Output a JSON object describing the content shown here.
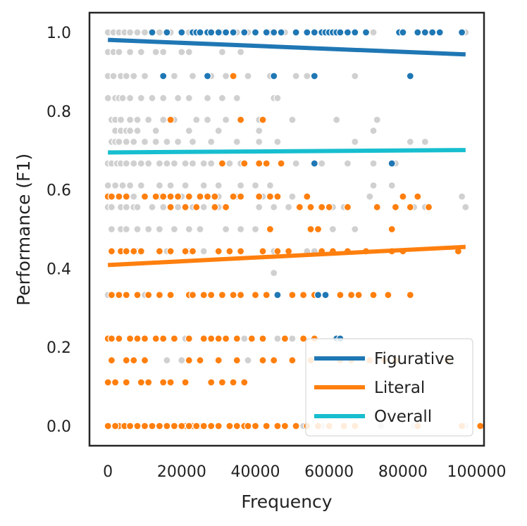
{
  "chart_data": {
    "type": "scatter",
    "title": "",
    "xlabel": "Frequency",
    "ylabel": "Performance (F1)",
    "xlim": [
      -5000,
      102000
    ],
    "ylim": [
      -0.05,
      1.05
    ],
    "xticks": [
      0,
      20000,
      40000,
      60000,
      80000,
      100000
    ],
    "yticks": [
      0.0,
      0.2,
      0.4,
      0.6,
      0.8,
      1.0
    ],
    "xtick_labels": [
      "0",
      "20000",
      "40000",
      "60000",
      "80000",
      "100000"
    ],
    "ytick_labels": [
      "0.0",
      "0.2",
      "0.4",
      "0.6",
      "0.8",
      "1.0"
    ],
    "grid": false,
    "legend_position": "lower-right",
    "colors": {
      "figurative": "#1f77b4",
      "literal": "#ff7f0e",
      "overall": "#17becf",
      "overall_points": "#d0d0d0",
      "axes": "#262626"
    },
    "series": [
      {
        "name": "Overall",
        "kind": "points",
        "color": "#d0d0d0",
        "x": [
          0,
          1500,
          3000,
          4500,
          6000,
          8000,
          10000,
          12000,
          14000,
          17000,
          20000,
          22000,
          25000,
          28000,
          31000,
          35000,
          38000,
          40000,
          44000,
          48000,
          56000,
          63000,
          72000,
          97000,
          0,
          1500,
          3000,
          6000,
          9000,
          13000,
          15000,
          20000,
          22000,
          31000,
          36000,
          0,
          1500,
          3500,
          5000,
          7000,
          10000,
          15000,
          18000,
          23000,
          28000,
          32000,
          34000,
          38000,
          44000,
          51000,
          54000,
          67000,
          0,
          2000,
          3000,
          4000,
          6000,
          9000,
          12000,
          15000,
          19000,
          22000,
          27000,
          31000,
          35000,
          45000,
          46000,
          1000,
          2000,
          3500,
          6000,
          8000,
          11000,
          15000,
          18000,
          24000,
          27000,
          32000,
          36000,
          41000,
          50000,
          62000,
          73000,
          2000,
          3500,
          5000,
          6000,
          8000,
          13000,
          22000,
          30000,
          41000,
          72000,
          1000,
          2000,
          3000,
          5000,
          7000,
          10000,
          13000,
          16000,
          19000,
          23000,
          28000,
          35000,
          41000,
          46000,
          67000,
          82000,
          86000,
          0,
          1000,
          2500,
          3500,
          5000,
          7000,
          9000,
          11000,
          14000,
          16000,
          18000,
          21000,
          23000,
          26000,
          28000,
          33000,
          36000,
          41000,
          51000,
          58000,
          65000,
          72000,
          78000,
          0,
          2000,
          4000,
          6000,
          9000,
          14000,
          17000,
          21000,
          26000,
          30000,
          36000,
          40000,
          44000,
          72000,
          77000,
          0,
          3000,
          5000,
          7000,
          10000,
          14000,
          20000,
          22000,
          25000,
          30000,
          35000,
          42000,
          50000,
          71000,
          96000,
          0,
          1000,
          3500,
          5000,
          7000,
          8000,
          12000,
          15000,
          19000,
          23000,
          26000,
          30000,
          32000,
          41000,
          45000,
          49000,
          58000,
          61000,
          64000,
          83000,
          86000,
          97000,
          1000,
          3500,
          5000,
          8000,
          11000,
          14000,
          18000,
          22000,
          25000,
          32000,
          36000,
          40000,
          55000,
          61000,
          67000,
          45000,
          1000,
          8000,
          16000,
          22000,
          26000,
          30000,
          36000,
          45000,
          54000,
          56000,
          0,
          2500,
          10000,
          0,
          1000,
          21000,
          37000,
          46000,
          50000,
          16000,
          20000,
          38000,
          0,
          6000,
          25000,
          35000,
          53000,
          58000,
          74000,
          83000,
          97000
        ],
        "y": [
          1.0,
          1.0,
          1.0,
          1.0,
          1.0,
          1.0,
          1.0,
          1.0,
          1.0,
          1.0,
          1.0,
          1.0,
          1.0,
          1.0,
          1.0,
          1.0,
          1.0,
          1.0,
          1.0,
          1.0,
          1.0,
          1.0,
          1.0,
          1.0,
          0.95,
          0.95,
          0.95,
          0.95,
          0.95,
          0.95,
          0.95,
          0.95,
          0.95,
          0.95,
          0.95,
          0.889,
          0.889,
          0.889,
          0.889,
          0.889,
          0.889,
          0.889,
          0.889,
          0.889,
          0.889,
          0.889,
          0.889,
          0.889,
          0.889,
          0.889,
          0.889,
          0.889,
          0.833,
          0.833,
          0.833,
          0.833,
          0.833,
          0.833,
          0.833,
          0.833,
          0.833,
          0.833,
          0.833,
          0.833,
          0.833,
          0.833,
          0.833,
          0.778,
          0.778,
          0.778,
          0.778,
          0.778,
          0.778,
          0.778,
          0.778,
          0.778,
          0.778,
          0.778,
          0.778,
          0.778,
          0.778,
          0.778,
          0.778,
          0.75,
          0.75,
          0.75,
          0.75,
          0.75,
          0.75,
          0.75,
          0.75,
          0.75,
          0.75,
          0.722,
          0.722,
          0.722,
          0.722,
          0.722,
          0.722,
          0.722,
          0.722,
          0.722,
          0.722,
          0.722,
          0.722,
          0.722,
          0.722,
          0.722,
          0.722,
          0.722,
          0.667,
          0.667,
          0.667,
          0.667,
          0.667,
          0.667,
          0.667,
          0.667,
          0.667,
          0.667,
          0.667,
          0.667,
          0.667,
          0.667,
          0.667,
          0.667,
          0.667,
          0.667,
          0.667,
          0.667,
          0.667,
          0.667,
          0.667,
          0.611,
          0.611,
          0.611,
          0.611,
          0.611,
          0.611,
          0.611,
          0.611,
          0.611,
          0.611,
          0.611,
          0.611,
          0.611,
          0.611,
          0.611,
          0.583,
          0.583,
          0.583,
          0.583,
          0.583,
          0.583,
          0.583,
          0.583,
          0.583,
          0.583,
          0.583,
          0.583,
          0.583,
          0.583,
          0.583,
          0.556,
          0.556,
          0.556,
          0.556,
          0.556,
          0.556,
          0.556,
          0.556,
          0.556,
          0.556,
          0.556,
          0.556,
          0.556,
          0.556,
          0.556,
          0.556,
          0.556,
          0.556,
          0.556,
          0.556,
          0.556,
          0.556,
          0.5,
          0.5,
          0.5,
          0.5,
          0.5,
          0.5,
          0.5,
          0.5,
          0.5,
          0.5,
          0.5,
          0.5,
          0.5,
          0.5,
          0.5,
          0.389,
          0.444,
          0.444,
          0.444,
          0.444,
          0.444,
          0.444,
          0.444,
          0.444,
          0.444,
          0.444,
          0.333,
          0.333,
          0.333,
          0.222,
          0.222,
          0.222,
          0.222,
          0.222,
          0.222,
          0.167,
          0.167,
          0.167,
          0.0,
          0.0,
          0.0,
          0.0,
          0.0,
          0.0,
          0.0,
          0.0,
          0.0
        ]
      },
      {
        "name": "Literal",
        "kind": "points",
        "color": "#ff7f0e",
        "x": [
          45000,
          34000,
          45000,
          17000,
          36000,
          42000,
          31000,
          37000,
          41000,
          43000,
          47000,
          37000,
          0,
          1000,
          3000,
          5000,
          10000,
          13000,
          15000,
          17000,
          19000,
          22000,
          25000,
          27000,
          29000,
          34000,
          36000,
          41000,
          44000,
          46000,
          54000,
          80000,
          84000,
          17000,
          21000,
          24000,
          29000,
          32000,
          52000,
          55000,
          58000,
          60000,
          65000,
          73000,
          78000,
          82000,
          87000,
          44000,
          77000,
          55000,
          57000,
          1000,
          3500,
          5000,
          7000,
          9000,
          14000,
          17000,
          21000,
          23000,
          30000,
          33000,
          36000,
          42000,
          46000,
          49000,
          58000,
          61000,
          65000,
          70000,
          77000,
          80000,
          95000,
          1000,
          3000,
          5000,
          8000,
          11000,
          14000,
          17000,
          22000,
          23000,
          26000,
          28000,
          31000,
          34000,
          36000,
          40000,
          43000,
          46000,
          50000,
          53000,
          56000,
          59000,
          63000,
          66000,
          68000,
          72000,
          76000,
          82000,
          0,
          1000,
          3000,
          6000,
          8000,
          10000,
          13000,
          15000,
          18000,
          22000,
          26000,
          28000,
          30000,
          32000,
          35000,
          39000,
          42000,
          48000,
          53000,
          56000,
          1000,
          5000,
          7000,
          10000,
          22000,
          25000,
          30000,
          35000,
          42000,
          45000,
          50000,
          55000,
          63000,
          66000,
          71000,
          75000,
          78000,
          92000,
          0,
          2000,
          5000,
          9000,
          11000,
          15000,
          17000,
          21000,
          28000,
          31000,
          34000,
          37000,
          3000,
          5000,
          8000,
          21000,
          23000,
          37000,
          0,
          2000,
          4500,
          6000,
          8000,
          10000,
          12000,
          14000,
          16000,
          18000,
          20000,
          22000,
          24000,
          26000,
          28000,
          30000,
          33000,
          35000,
          38000,
          40000,
          43000,
          46000,
          48000,
          51000,
          54000,
          57000,
          60000,
          64000,
          67000,
          84000,
          96000,
          101000
        ],
        "y": [
          1.0,
          0.889,
          0.889,
          0.778,
          0.778,
          0.778,
          0.667,
          0.667,
          0.667,
          0.667,
          0.667,
          0.667,
          0.583,
          0.583,
          0.583,
          0.583,
          0.583,
          0.583,
          0.583,
          0.583,
          0.583,
          0.583,
          0.583,
          0.583,
          0.583,
          0.583,
          0.583,
          0.583,
          0.583,
          0.583,
          0.583,
          0.583,
          0.583,
          0.556,
          0.556,
          0.556,
          0.556,
          0.556,
          0.556,
          0.556,
          0.556,
          0.556,
          0.556,
          0.556,
          0.556,
          0.556,
          0.556,
          0.5,
          0.5,
          0.5,
          0.5,
          0.444,
          0.444,
          0.444,
          0.444,
          0.444,
          0.444,
          0.444,
          0.444,
          0.444,
          0.444,
          0.444,
          0.444,
          0.444,
          0.444,
          0.444,
          0.444,
          0.444,
          0.444,
          0.444,
          0.444,
          0.444,
          0.444,
          0.333,
          0.333,
          0.333,
          0.333,
          0.333,
          0.333,
          0.333,
          0.333,
          0.333,
          0.333,
          0.333,
          0.333,
          0.333,
          0.333,
          0.333,
          0.333,
          0.333,
          0.333,
          0.333,
          0.333,
          0.333,
          0.333,
          0.333,
          0.333,
          0.333,
          0.333,
          0.333,
          0.222,
          0.222,
          0.222,
          0.222,
          0.222,
          0.222,
          0.222,
          0.222,
          0.222,
          0.222,
          0.222,
          0.222,
          0.222,
          0.222,
          0.222,
          0.222,
          0.222,
          0.222,
          0.222,
          0.222,
          0.167,
          0.167,
          0.167,
          0.167,
          0.167,
          0.167,
          0.167,
          0.167,
          0.167,
          0.167,
          0.167,
          0.167,
          0.167,
          0.167,
          0.167,
          0.167,
          0.167,
          0.167,
          0.111,
          0.111,
          0.111,
          0.111,
          0.111,
          0.111,
          0.111,
          0.111,
          0.111,
          0.111,
          0.111,
          0.111,
          0.0,
          0.0,
          0.0,
          0.0,
          0.0,
          0.0,
          0.0,
          0.0,
          0.0,
          0.0,
          0.0,
          0.0,
          0.0,
          0.0,
          0.0,
          0.0,
          0.0,
          0.0,
          0.0,
          0.0,
          0.0,
          0.0,
          0.0,
          0.0,
          0.0,
          0.0,
          0.0,
          0.0,
          0.0,
          0.0,
          0.0,
          0.0,
          0.0,
          0.0,
          0.0,
          0.0,
          0.0,
          0.0
        ]
      },
      {
        "name": "Figurative",
        "kind": "points",
        "color": "#1f77b4",
        "x": [
          12000,
          16000,
          20000,
          23000,
          24000,
          25000,
          27000,
          28000,
          30000,
          32000,
          34000,
          37000,
          40000,
          43000,
          45000,
          47000,
          51000,
          54000,
          56000,
          58000,
          59000,
          60000,
          61000,
          62000,
          63000,
          65000,
          67000,
          70000,
          79000,
          80000,
          84000,
          86000,
          88000,
          90000,
          96000,
          15000,
          27000,
          45000,
          56000,
          82000,
          56000,
          77000,
          46000,
          57000,
          59000,
          62000,
          63000
        ],
        "y": [
          1.0,
          1.0,
          1.0,
          1.0,
          1.0,
          1.0,
          1.0,
          1.0,
          1.0,
          1.0,
          1.0,
          1.0,
          1.0,
          1.0,
          1.0,
          1.0,
          1.0,
          1.0,
          1.0,
          1.0,
          1.0,
          1.0,
          1.0,
          1.0,
          1.0,
          1.0,
          1.0,
          1.0,
          1.0,
          1.0,
          1.0,
          1.0,
          1.0,
          1.0,
          1.0,
          0.889,
          0.889,
          0.889,
          0.889,
          0.889,
          0.667,
          0.667,
          0.333,
          0.333,
          0.333,
          0.222,
          0.222
        ]
      },
      {
        "name": "Figurative",
        "kind": "regression",
        "color": "#1f77b4",
        "x": [
          0,
          97000
        ],
        "y": [
          0.981,
          0.944
        ]
      },
      {
        "name": "Literal",
        "kind": "regression",
        "color": "#ff7f0e",
        "x": [
          0,
          97000
        ],
        "y": [
          0.409,
          0.455
        ]
      },
      {
        "name": "Overall",
        "kind": "regression",
        "color": "#17becf",
        "x": [
          0,
          97000
        ],
        "y": [
          0.695,
          0.701
        ]
      }
    ],
    "legend": [
      {
        "label": "Figurative",
        "color": "#1f77b4"
      },
      {
        "label": "Literal",
        "color": "#ff7f0e"
      },
      {
        "label": "Overall",
        "color": "#17becf"
      }
    ]
  }
}
